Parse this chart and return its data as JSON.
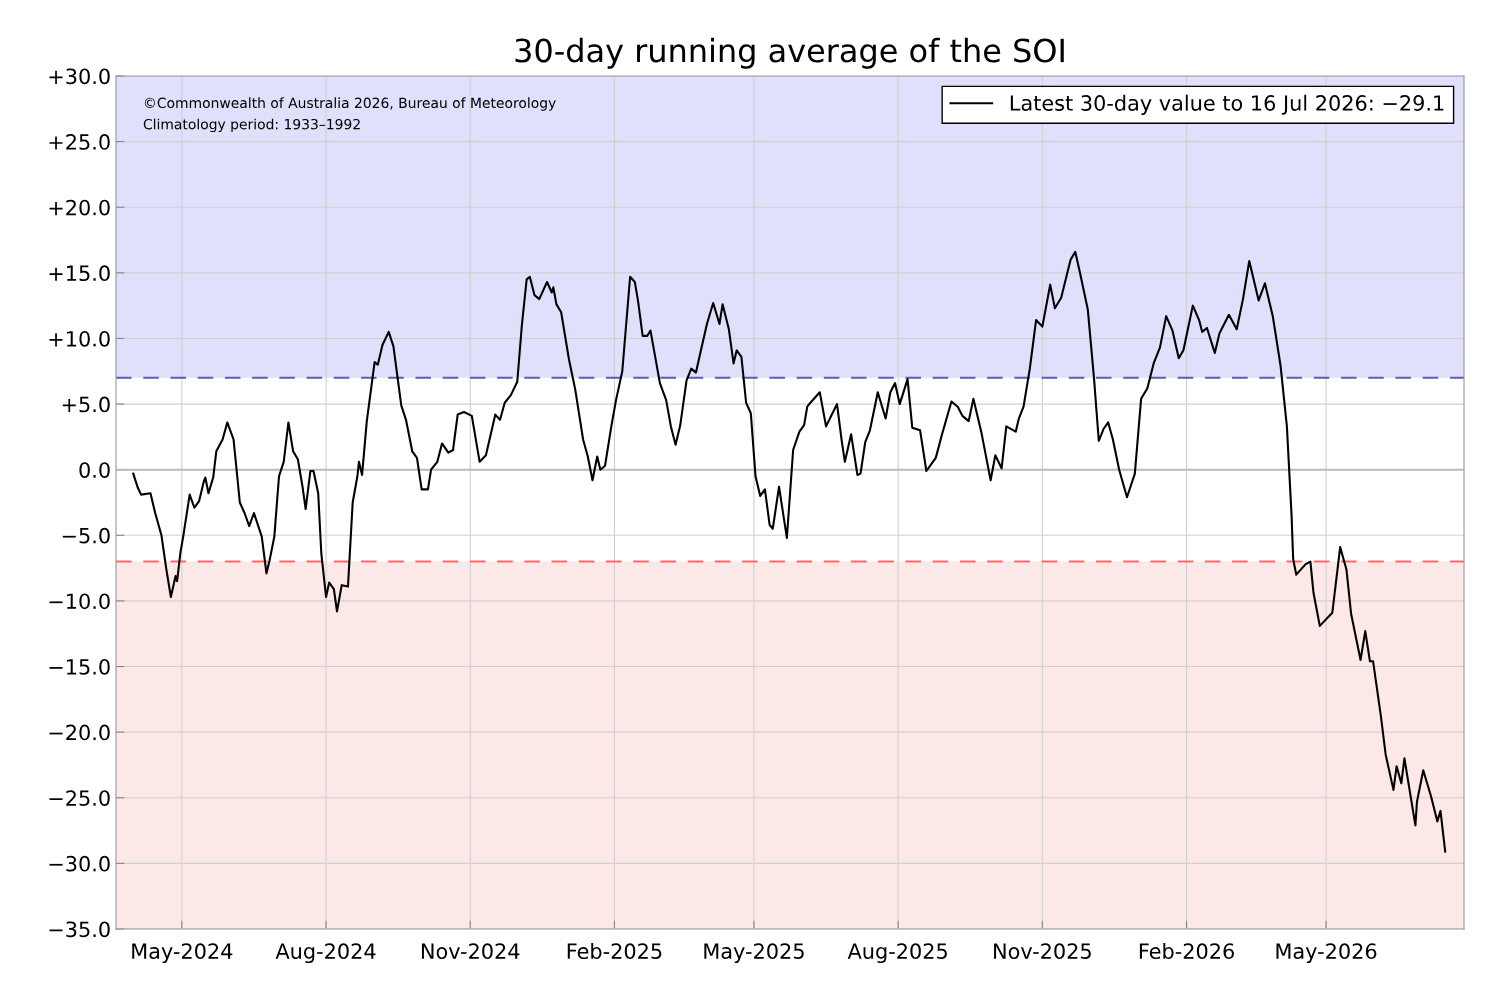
{
  "chart_data": {
    "type": "line",
    "title": "30-day running average of the SOI",
    "annotations": [
      "©Commonwealth of Australia 2026, Bureau of Meteorology",
      "Climatology period: 1933–1992"
    ],
    "x": [
      "2024-03-31",
      "2024-04-03",
      "2024-04-05",
      "2024-04-11",
      "2024-04-14",
      "2024-04-18",
      "2024-04-21",
      "2024-04-24",
      "2024-04-27",
      "2024-04-28",
      "2024-04-30",
      "2024-05-02",
      "2024-05-06",
      "2024-05-09",
      "2024-05-12",
      "2024-05-15",
      "2024-05-16",
      "2024-05-18",
      "2024-05-21",
      "2024-05-23",
      "2024-05-27",
      "2024-05-30",
      "2024-06-03",
      "2024-06-07",
      "2024-06-10",
      "2024-06-13",
      "2024-06-16",
      "2024-06-21",
      "2024-06-24",
      "2024-06-26",
      "2024-06-29",
      "2024-07-02",
      "2024-07-05",
      "2024-07-08",
      "2024-07-11",
      "2024-07-14",
      "2024-07-17",
      "2024-07-19",
      "2024-07-22",
      "2024-07-24",
      "2024-07-27",
      "2024-07-29",
      "2024-08-01",
      "2024-08-03",
      "2024-08-06",
      "2024-08-08",
      "2024-08-11",
      "2024-08-15",
      "2024-08-18",
      "2024-08-21",
      "2024-08-22",
      "2024-08-24",
      "2024-08-27",
      "2024-09-01",
      "2024-09-03",
      "2024-09-06",
      "2024-09-10",
      "2024-09-13",
      "2024-09-18",
      "2024-09-21",
      "2024-09-25",
      "2024-09-28",
      "2024-10-01",
      "2024-10-05",
      "2024-10-07",
      "2024-10-11",
      "2024-10-14",
      "2024-10-18",
      "2024-10-21",
      "2024-10-24",
      "2024-10-28",
      "2024-11-02",
      "2024-11-07",
      "2024-11-11",
      "2024-11-17",
      "2024-11-20",
      "2024-11-23",
      "2024-11-27",
      "2024-12-01",
      "2024-12-04",
      "2024-12-07",
      "2024-12-09",
      "2024-12-12",
      "2024-12-15",
      "2024-12-20",
      "2024-12-23",
      "2024-12-24",
      "2024-12-26",
      "2024-12-29",
      "2025-01-03",
      "2025-01-07",
      "2025-01-12",
      "2025-01-15",
      "2025-01-18",
      "2025-01-21",
      "2025-01-23",
      "2025-01-26",
      "2025-01-30",
      "2025-02-02",
      "2025-02-06",
      "2025-02-11",
      "2025-02-14",
      "2025-02-16",
      "2025-02-19",
      "2025-02-22",
      "2025-02-24",
      "2025-02-27",
      "2025-03-02",
      "2025-03-06",
      "2025-03-09",
      "2025-03-12",
      "2025-03-15",
      "2025-03-19",
      "2025-03-22",
      "2025-03-25",
      "2025-03-28",
      "2025-04-01",
      "2025-04-05",
      "2025-04-09",
      "2025-04-11",
      "2025-04-15",
      "2025-04-18",
      "2025-04-20",
      "2025-04-23",
      "2025-04-26",
      "2025-04-29",
      "2025-05-02",
      "2025-05-05",
      "2025-05-08",
      "2025-05-11",
      "2025-05-13",
      "2025-05-17",
      "2025-05-22",
      "2025-05-26",
      "2025-05-30",
      "2025-06-02",
      "2025-06-04",
      "2025-06-06",
      "2025-06-12",
      "2025-06-16",
      "2025-06-23",
      "2025-06-26",
      "2025-06-28",
      "2025-07-02",
      "2025-07-06",
      "2025-07-08",
      "2025-07-11",
      "2025-07-14",
      "2025-07-19",
      "2025-07-24",
      "2025-07-27",
      "2025-07-30",
      "2025-08-02",
      "2025-08-07",
      "2025-08-10",
      "2025-08-15",
      "2025-08-19",
      "2025-08-25",
      "2025-08-29",
      "2025-09-04",
      "2025-09-08",
      "2025-09-11",
      "2025-09-15",
      "2025-09-18",
      "2025-09-23",
      "2025-09-29",
      "2025-10-02",
      "2025-10-06",
      "2025-10-09",
      "2025-10-15",
      "2025-10-17",
      "2025-10-20",
      "2025-10-24",
      "2025-10-28",
      "2025-11-01",
      "2025-11-06",
      "2025-11-09",
      "2025-11-13",
      "2025-11-19",
      "2025-11-22",
      "2025-11-25",
      "2025-11-30",
      "2025-12-04",
      "2025-12-07",
      "2025-12-10",
      "2025-12-13",
      "2025-12-16",
      "2025-12-20",
      "2025-12-25",
      "2025-12-30",
      "2026-01-03",
      "2026-01-07",
      "2026-01-11",
      "2026-01-15",
      "2026-01-19",
      "2026-01-23",
      "2026-01-27",
      "2026-01-30",
      "2026-02-05",
      "2026-02-09",
      "2026-02-11",
      "2026-02-14",
      "2026-02-19",
      "2026-02-22",
      "2026-02-28",
      "2026-03-05",
      "2026-03-09",
      "2026-03-13",
      "2026-03-19",
      "2026-03-23",
      "2026-03-28",
      "2026-04-02",
      "2026-04-06",
      "2026-04-09",
      "2026-04-10",
      "2026-04-12",
      "2026-04-18",
      "2026-04-21",
      "2026-04-23",
      "2026-04-27",
      "2026-05-05",
      "2026-05-10",
      "2026-05-14",
      "2026-05-17",
      "2026-05-23",
      "2026-05-26",
      "2026-05-29",
      "2026-05-31",
      "2026-06-05",
      "2026-06-08",
      "2026-06-13",
      "2026-06-15",
      "2026-06-18",
      "2026-06-20",
      "2026-06-23",
      "2026-06-27",
      "2026-06-28",
      "2026-07-02",
      "2026-07-07",
      "2026-07-11",
      "2026-07-13",
      "2026-07-16"
    ],
    "series": [
      {
        "name": "Latest 30-day value to 16 Jul 2026: −29.1",
        "color": "#000000",
        "values": [
          -0.3,
          -1.4,
          -1.9,
          -1.8,
          -3.3,
          -5.0,
          -7.5,
          -9.7,
          -8.1,
          -8.5,
          -6.4,
          -5.0,
          -1.9,
          -2.9,
          -2.4,
          -0.9,
          -0.6,
          -1.8,
          -0.6,
          1.4,
          2.3,
          3.6,
          2.3,
          -2.5,
          -3.3,
          -4.3,
          -3.3,
          -5.1,
          -7.9,
          -6.9,
          -5.1,
          -0.5,
          0.6,
          3.6,
          1.4,
          0.8,
          -1.3,
          -3.0,
          -0.1,
          -0.1,
          -1.8,
          -6.4,
          -9.7,
          -8.6,
          -9.1,
          -10.8,
          -8.8,
          -8.9,
          -2.5,
          -0.5,
          0.6,
          -0.4,
          3.7,
          8.2,
          8.0,
          9.5,
          10.5,
          9.4,
          4.9,
          3.8,
          1.4,
          0.9,
          -1.5,
          -1.5,
          0.0,
          0.6,
          2.0,
          1.3,
          1.5,
          4.2,
          4.4,
          4.1,
          0.6,
          1.1,
          4.2,
          3.8,
          5.1,
          5.7,
          6.7,
          11.1,
          14.5,
          14.7,
          13.3,
          13.0,
          14.3,
          13.5,
          13.9,
          12.6,
          12.0,
          8.4,
          6.1,
          2.3,
          1.0,
          -0.8,
          1.0,
          0.0,
          0.3,
          3.3,
          5.3,
          7.5,
          14.7,
          14.3,
          12.9,
          10.2,
          10.2,
          10.6,
          8.6,
          6.6,
          5.3,
          3.3,
          1.9,
          3.4,
          6.8,
          7.7,
          7.4,
          9.0,
          11.1,
          12.7,
          11.1,
          12.6,
          10.7,
          8.1,
          9.1,
          8.6,
          5.1,
          4.3,
          -0.5,
          -2.0,
          -1.5,
          -4.2,
          -4.5,
          -1.3,
          -5.2,
          1.5,
          2.9,
          3.4,
          4.8,
          5.1,
          5.9,
          3.3,
          5.0,
          2.2,
          0.6,
          2.7,
          -0.4,
          -0.3,
          2.1,
          3.0,
          5.9,
          3.9,
          5.9,
          6.6,
          5.0,
          6.9,
          3.2,
          3.0,
          -0.1,
          0.9,
          2.7,
          5.2,
          4.8,
          4.1,
          3.7,
          5.4,
          2.9,
          -0.8,
          1.1,
          0.1,
          3.3,
          2.9,
          3.9,
          4.8,
          7.7,
          11.4,
          10.9,
          14.1,
          12.3,
          13.1,
          16.0,
          16.6,
          15.0,
          12.2,
          6.9,
          2.2,
          3.1,
          3.6,
          2.3,
          0.0,
          -2.1,
          -0.3,
          5.4,
          6.2,
          8.1,
          9.3,
          11.7,
          10.6,
          8.5,
          9.1,
          12.5,
          11.4,
          10.5,
          10.8,
          8.9,
          10.4,
          11.8,
          10.7,
          13.0,
          15.9,
          12.9,
          14.2,
          11.7,
          7.9,
          3.3,
          -3.5,
          -6.8,
          -8.0,
          -7.2,
          -7.0,
          -9.4,
          -11.9,
          -10.9,
          -5.9,
          -7.6,
          -11.0,
          -14.5,
          -12.3,
          -14.6,
          -14.6,
          -18.8,
          -21.7,
          -24.4,
          -22.6,
          -23.9,
          -22.0,
          -24.2,
          -27.1,
          -25.3,
          -22.9,
          -24.9,
          -26.8,
          -26.0,
          -29.1
        ]
      }
    ],
    "xlim": [
      "2024-03-20",
      "2026-07-28"
    ],
    "xticks": [
      {
        "value": "2024-05-01",
        "label": "May-2024"
      },
      {
        "value": "2024-08-01",
        "label": "Aug-2024"
      },
      {
        "value": "2024-11-01",
        "label": "Nov-2024"
      },
      {
        "value": "2025-02-01",
        "label": "Feb-2025"
      },
      {
        "value": "2025-05-01",
        "label": "May-2025"
      },
      {
        "value": "2025-08-01",
        "label": "Aug-2025"
      },
      {
        "value": "2025-11-01",
        "label": "Nov-2025"
      },
      {
        "value": "2026-02-01",
        "label": "Feb-2026"
      },
      {
        "value": "2026-05-01",
        "label": "May-2026"
      }
    ],
    "ylim": [
      -35,
      30
    ],
    "yticks": [
      {
        "value": -35,
        "label": "−35.0"
      },
      {
        "value": -30,
        "label": "−30.0"
      },
      {
        "value": -25,
        "label": "−25.0"
      },
      {
        "value": -20,
        "label": "−20.0"
      },
      {
        "value": -15,
        "label": "−15.0"
      },
      {
        "value": -10,
        "label": "−10.0"
      },
      {
        "value": -5,
        "label": "−5.0"
      },
      {
        "value": 0,
        "label": "0.0"
      },
      {
        "value": 5,
        "label": "+5.0"
      },
      {
        "value": 10,
        "label": "+10.0"
      },
      {
        "value": 15,
        "label": "+15.0"
      },
      {
        "value": 20,
        "label": "+20.0"
      },
      {
        "value": 25,
        "label": "+25.0"
      },
      {
        "value": 30,
        "label": "+30.0"
      }
    ],
    "ref_lines": [
      {
        "axis": "y",
        "value": 7,
        "color": "#5b5bb8",
        "line_style": "dashed"
      },
      {
        "axis": "y",
        "value": -7,
        "color": "#ff6666",
        "line_style": "dashed"
      },
      {
        "axis": "y",
        "value": 0,
        "color": "#bbbbbb",
        "line_style": "solid"
      }
    ],
    "bands": [
      {
        "axis": "y",
        "from": 7,
        "to": 30,
        "color": "#e0e0fd"
      },
      {
        "axis": "y",
        "from": -35,
        "to": -7,
        "color": "#fde8e8"
      }
    ],
    "grid": true,
    "legend": "top right",
    "marker": "none",
    "line_style": "solid"
  }
}
